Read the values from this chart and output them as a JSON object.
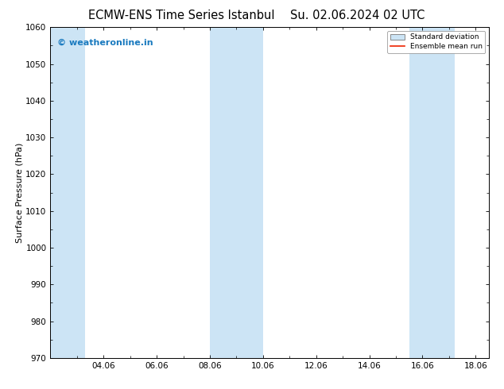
{
  "title_left": "ECMW-ENS Time Series Istanbul",
  "title_right": "Su. 02.06.2024 02 UTC",
  "ylabel": "Surface Pressure (hPa)",
  "ylim": [
    970,
    1060
  ],
  "yticks": [
    970,
    980,
    990,
    1000,
    1010,
    1020,
    1030,
    1040,
    1050,
    1060
  ],
  "xlim_start": 2.0,
  "xlim_end": 18.5,
  "xtick_labels": [
    "04.06",
    "06.06",
    "08.06",
    "10.06",
    "12.06",
    "14.06",
    "16.06",
    "18.06"
  ],
  "xtick_positions": [
    4,
    6,
    8,
    10,
    12,
    14,
    16,
    18
  ],
  "shaded_bands": [
    {
      "x_start": 2.0,
      "x_end": 3.3
    },
    {
      "x_start": 8.0,
      "x_end": 10.0
    },
    {
      "x_start": 15.5,
      "x_end": 17.2
    }
  ],
  "shade_color": "#cce4f5",
  "background_color": "#ffffff",
  "watermark_text": "© weatheronline.in",
  "watermark_color": "#1a7abf",
  "legend_std_color": "#cccccc",
  "legend_mean_color": "#ee2200",
  "title_fontsize": 10.5,
  "axis_fontsize": 7.5,
  "ylabel_fontsize": 8
}
